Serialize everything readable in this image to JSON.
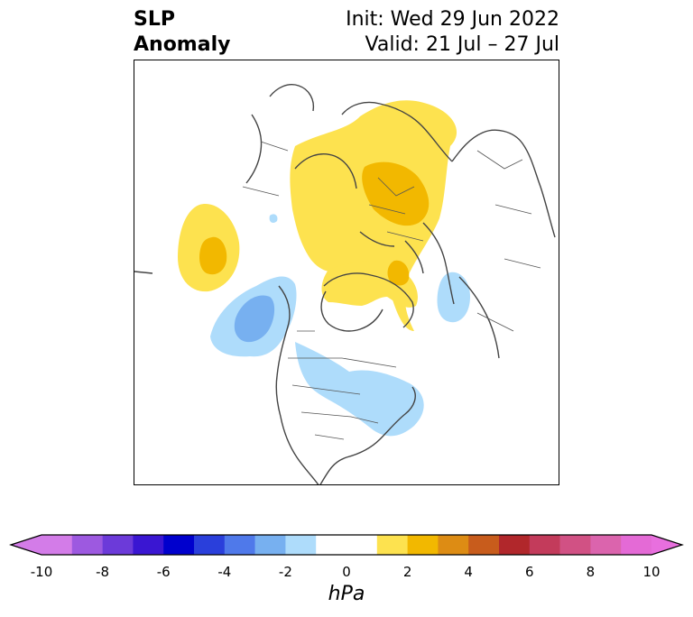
{
  "title": {
    "left_line1": "SLP",
    "left_line2": "Anomaly",
    "right_line1": "Init: Wed 29 Jun 2022",
    "right_line2": "Valid: 21 Jul – 27 Jul"
  },
  "colorbar": {
    "unit": "hPa",
    "ticks": [
      "-10",
      "-8",
      "-6",
      "-4",
      "-2",
      "0",
      "2",
      "4",
      "6",
      "8",
      "10"
    ],
    "tick_values": [
      -10,
      -8,
      -6,
      -4,
      -2,
      0,
      2,
      4,
      6,
      8,
      10
    ],
    "min": -10,
    "max": 10,
    "step": 1,
    "extend": "both",
    "colors": [
      "#d37ce8",
      "#9d59e0",
      "#6c3ad9",
      "#3a16d2",
      "#0000cd",
      "#2a3fdb",
      "#4f79ea",
      "#77b0f0",
      "#aedcfb",
      "#ffffff",
      "#ffffff",
      "#fde24f",
      "#f2b800",
      "#dd8c14",
      "#c85c1c",
      "#b1272b",
      "#c33b5b",
      "#d15184",
      "#db64ad",
      "#e46ad6"
    ],
    "under_color": "#d37ce8",
    "over_color": "#e86fde"
  },
  "map": {
    "projection": "north-polar-stereographic",
    "region": "Northern Hemisphere (North America, Greenland, Europe, North Atlantic)",
    "anomaly_features": [
      {
        "kind": "positive",
        "level": "2 to 4",
        "location": "Scandinavia / Baltic / western Russia",
        "color": "#f2b800"
      },
      {
        "kind": "positive",
        "level": "0.5 to 2",
        "location": "Europe and Arctic",
        "color": "#fde24f"
      },
      {
        "kind": "positive",
        "level": "2 to 4",
        "location": "central North Pacific",
        "color": "#f2b800"
      },
      {
        "kind": "positive",
        "level": "2 to 4",
        "location": "Greenland",
        "color": "#f2b800"
      },
      {
        "kind": "negative",
        "level": "-2 to -4",
        "location": "Gulf of Alaska",
        "color": "#77b0f0"
      },
      {
        "kind": "negative",
        "level": "-0.5 to -2",
        "location": "Canada / NE United States",
        "color": "#aedcfb"
      },
      {
        "kind": "negative",
        "level": "-0.5 to -2",
        "location": "central Asia",
        "color": "#aedcfb"
      }
    ]
  }
}
